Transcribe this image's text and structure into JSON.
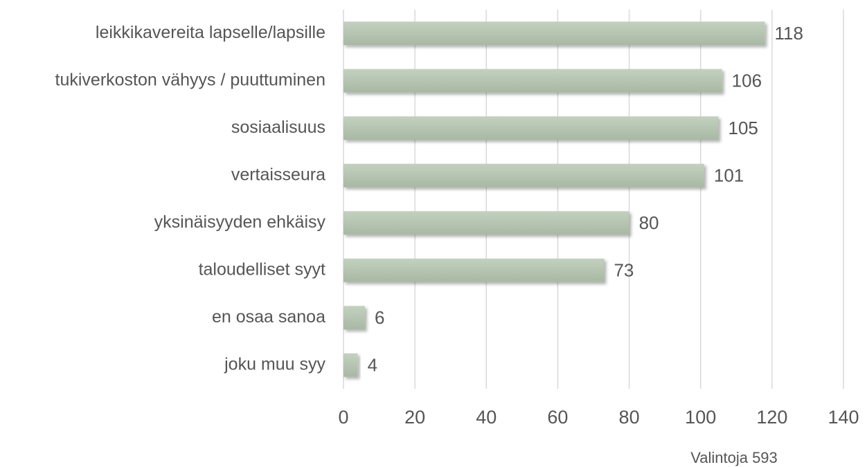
{
  "chart_data": {
    "type": "bar",
    "orientation": "horizontal",
    "categories": [
      "leikkikavereita lapselle/lapsille",
      "tukiverkoston vähyys / puuttuminen",
      "sosiaalisuus",
      "vertaisseura",
      "yksinäisyyden ehkäisy",
      "taloudelliset syyt",
      "en osaa sanoa",
      "joku muu syy"
    ],
    "values": [
      118,
      106,
      105,
      101,
      80,
      73,
      6,
      4
    ],
    "color": "#b4c3b0",
    "xlim": [
      0,
      140
    ],
    "xticks": [
      0,
      20,
      40,
      60,
      80,
      100,
      120,
      140
    ],
    "grid": true,
    "note": "Valintoja 593"
  }
}
